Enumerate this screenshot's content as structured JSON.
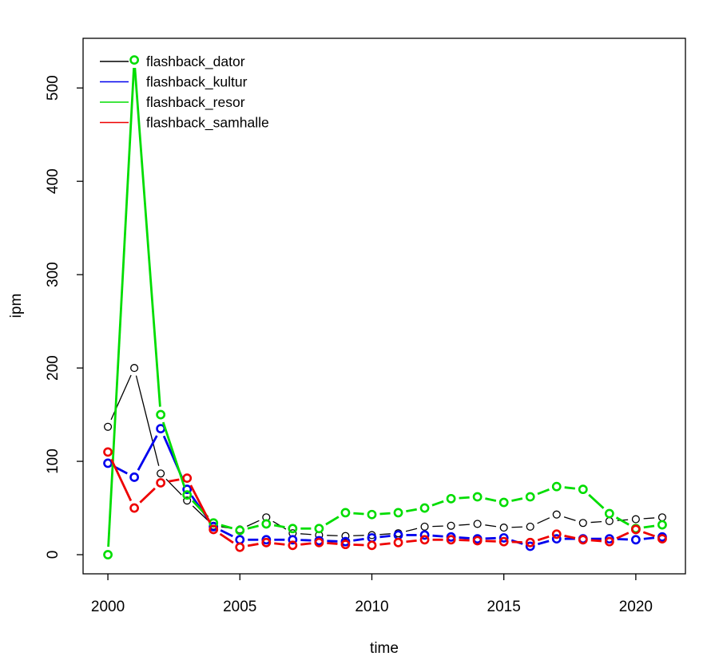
{
  "chart_data": {
    "type": "line",
    "title": "",
    "xlabel": "time",
    "ylabel": "ipm",
    "marker": "open-circle",
    "line_style": "points-with-segment-gaps",
    "grid": false,
    "legend_position": "top-left",
    "background_color": "#ffffff",
    "axis_color": "#000000",
    "xlim": [
      1999.06,
      2021.88
    ],
    "ylim": [
      -20.5,
      553.2
    ],
    "x_ticks": [
      2000,
      2005,
      2010,
      2015,
      2020
    ],
    "x_tick_labels": [
      "2000",
      "2005",
      "2010",
      "2015",
      "2020"
    ],
    "y_ticks": [
      0,
      100,
      200,
      300,
      400,
      500
    ],
    "y_tick_labels": [
      "0",
      "100",
      "200",
      "300",
      "400",
      "500"
    ],
    "x": [
      2000,
      2001,
      2002,
      2003,
      2004,
      2005,
      2006,
      2007,
      2008,
      2009,
      2010,
      2011,
      2012,
      2013,
      2014,
      2015,
      2016,
      2017,
      2018,
      2019,
      2020,
      2021
    ],
    "series": [
      {
        "name": "flashback_dator",
        "color": "#000000",
        "line_width": 1.3,
        "marker_radius": 4.4,
        "marker_stroke": 1.3,
        "values": [
          137,
          200,
          87,
          58,
          31,
          27,
          40,
          23,
          21,
          20,
          21,
          23,
          30,
          31,
          33,
          29,
          30,
          43,
          34,
          36,
          38,
          40
        ]
      },
      {
        "name": "flashback_kultur",
        "color": "#0000EE",
        "line_width": 2.8,
        "marker_radius": 4.6,
        "marker_stroke": 2.6,
        "values": [
          98,
          83,
          135,
          70,
          30,
          16,
          16,
          16,
          15,
          14,
          18,
          21,
          21,
          19,
          17,
          18,
          9,
          17,
          17,
          17,
          16,
          19
        ]
      },
      {
        "name": "flashback_resor",
        "color": "#00DD00",
        "line_width": 2.8,
        "marker_radius": 4.6,
        "marker_stroke": 2.6,
        "values": [
          0,
          530,
          150,
          64,
          34,
          26,
          33,
          28,
          28,
          45,
          43,
          45,
          50,
          60,
          62,
          56,
          62,
          73,
          70,
          44,
          28,
          32
        ]
      },
      {
        "name": "flashback_samhalle",
        "color": "#EE0000",
        "line_width": 2.8,
        "marker_radius": 4.6,
        "marker_stroke": 2.6,
        "values": [
          110,
          50,
          77,
          82,
          27,
          8,
          13,
          10,
          13,
          11,
          10,
          13,
          16,
          16,
          15,
          14,
          13,
          22,
          16,
          14,
          27,
          17
        ]
      }
    ]
  }
}
